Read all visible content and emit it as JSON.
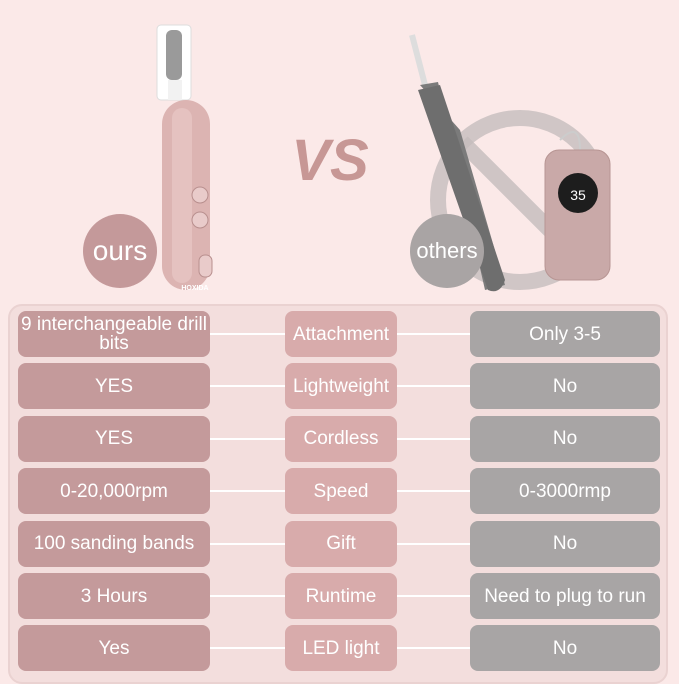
{
  "header": {
    "vs_label": "VS",
    "ours_label": "ours",
    "others_label": "others",
    "brand_logo_text": "HOXIDA",
    "device_display_value": "35"
  },
  "colors": {
    "background": "#fbe9e8",
    "ours": "#c49a9b",
    "feature": "#d8abab",
    "others": "#a8a5a5"
  },
  "comparison": {
    "rows": [
      {
        "ours": "9 interchangeable drill bits",
        "feature": "Attachment",
        "others": "Only 3-5"
      },
      {
        "ours": "YES",
        "feature": "Lightweight",
        "others": "No"
      },
      {
        "ours": "YES",
        "feature": "Cordless",
        "others": "No"
      },
      {
        "ours": "0-20,000rpm",
        "feature": "Speed",
        "others": "0-3000rmp"
      },
      {
        "ours": "100 sanding bands",
        "feature": "Gift",
        "others": "No"
      },
      {
        "ours": "3 Hours",
        "feature": "Runtime",
        "others": "Need to plug to run"
      },
      {
        "ours": "Yes",
        "feature": "LED light",
        "others": "No"
      }
    ]
  }
}
